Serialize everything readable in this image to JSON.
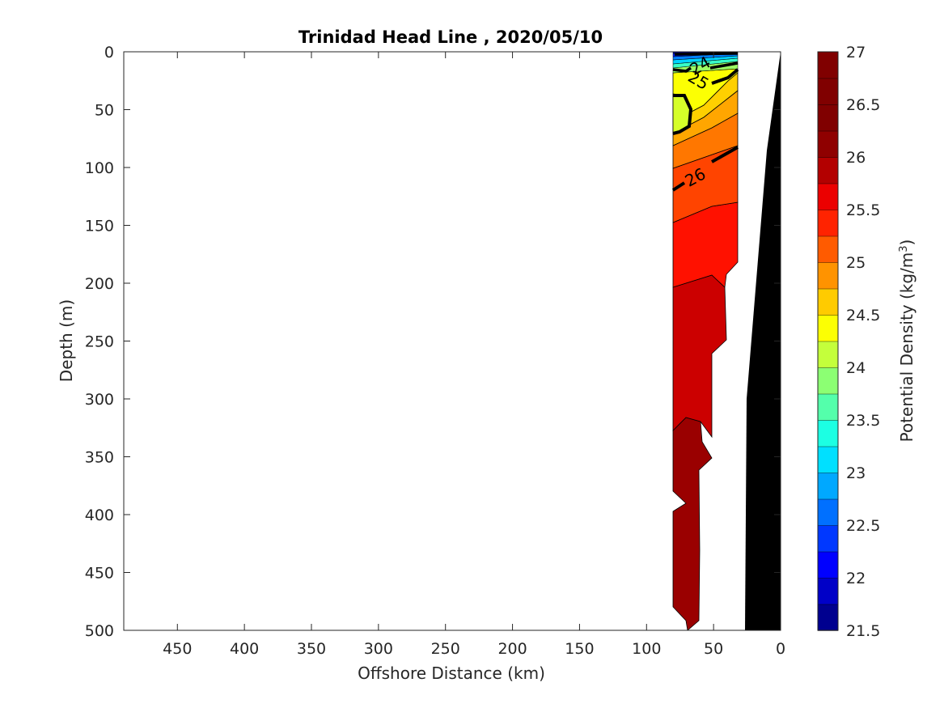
{
  "chart_data": {
    "type": "contour",
    "title": "Trinidad Head Line , 2020/05/10",
    "xlabel": "Offshore Distance (km)",
    "ylabel": "Depth (m)",
    "xlim": [
      490,
      0
    ],
    "ylim": [
      0,
      500
    ],
    "x_direction": "reversed",
    "y_direction": "reversed (depth increases downward)",
    "xticks": [
      450,
      400,
      350,
      300,
      250,
      200,
      150,
      100,
      50,
      0
    ],
    "yticks": [
      0,
      50,
      100,
      150,
      200,
      250,
      300,
      350,
      400,
      450,
      500
    ],
    "colorbar": {
      "label_main": "Potential Density (kg/m",
      "label_sup": "3",
      "label_close": ")",
      "range": [
        21.5,
        27
      ],
      "step": 0.25,
      "ticks": [
        "21.5",
        "22",
        "22.5",
        "23",
        "23.5",
        "24",
        "24.5",
        "25",
        "25.5",
        "26",
        "26.5",
        "27"
      ],
      "colors": [
        "#00008f",
        "#0000c7",
        "#0000ff",
        "#0038ff",
        "#0070ff",
        "#00a8ff",
        "#00e0ff",
        "#1cffe3",
        "#54ffab",
        "#8cff73",
        "#c4ff3b",
        "#fcff03",
        "#ffcb00",
        "#ff9300",
        "#ff5b00",
        "#ff2300",
        "#eb0000",
        "#b30000",
        "#8f0000",
        "#800000",
        "#800000",
        "#800000"
      ]
    },
    "labeled_contours": [
      {
        "value": 25,
        "label_text": "25"
      },
      {
        "value": 26,
        "label_text": "26"
      },
      {
        "value": 24,
        "label_text": "24"
      }
    ],
    "section_profile": [
      {
        "depth": 0,
        "offshore_km": 79
      },
      {
        "depth": 30,
        "offshore_km": 80
      },
      {
        "depth": 100,
        "offshore_km": 80
      },
      {
        "depth": 200,
        "offshore_km": 80
      },
      {
        "depth": 330,
        "offshore_km": 80
      },
      {
        "depth": 400,
        "offshore_km": 80
      },
      {
        "depth": 480,
        "offshore_km": 80
      },
      {
        "depth": 500,
        "offshore_km": 70
      }
    ],
    "bathymetry": [
      {
        "offshore_km": 0,
        "depth": 0
      },
      {
        "offshore_km": 10,
        "depth": 85
      },
      {
        "offshore_km": 18,
        "depth": 300
      },
      {
        "offshore_km": 25,
        "depth": 500
      }
    ]
  }
}
